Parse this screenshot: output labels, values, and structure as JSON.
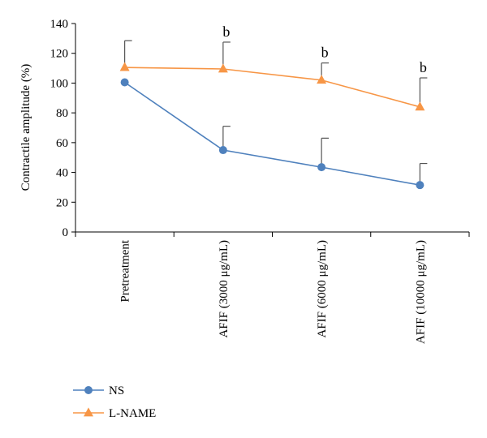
{
  "chart_data": {
    "type": "line",
    "ylabel": "Contractile amplitude (%)",
    "xlabel": "",
    "ylim": [
      0,
      140
    ],
    "yticks": [
      0,
      20,
      40,
      60,
      80,
      100,
      120,
      140
    ],
    "grid": false,
    "legend_position": "bottom-left",
    "categories": [
      "Pretreatment",
      "AFIF (3000 μg/mL)",
      "AFIF (6000 μg/mL)",
      "AFIF (10000 μg/mL)"
    ],
    "series": [
      {
        "name": "NS",
        "marker": "circle",
        "color": "#4f81bd",
        "values": [
          100.5,
          55,
          43.5,
          31.5
        ],
        "error": [
          null,
          16,
          19.5,
          14.5
        ]
      },
      {
        "name": "L-NAME",
        "marker": "triangle",
        "color": "#f79646",
        "values": [
          110.5,
          109.5,
          102,
          84
        ],
        "error": [
          18,
          18,
          11.5,
          19.5
        ]
      }
    ],
    "annotations": [
      {
        "category_index": 1,
        "text": "b"
      },
      {
        "category_index": 2,
        "text": "b"
      },
      {
        "category_index": 3,
        "text": "b"
      }
    ]
  }
}
